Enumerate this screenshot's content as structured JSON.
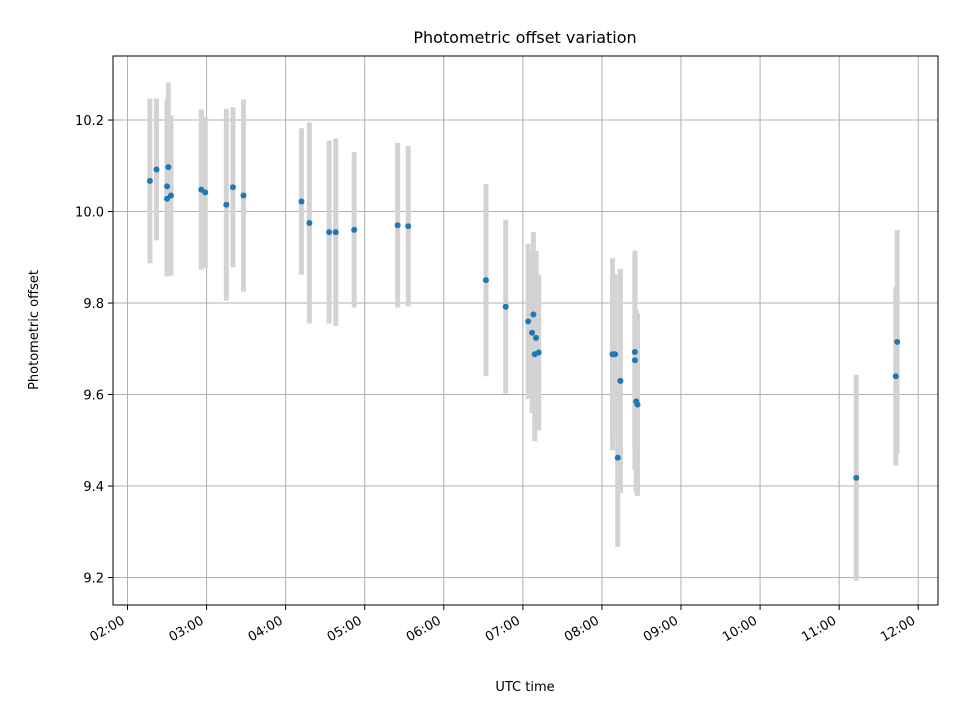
{
  "chart_data": {
    "type": "scatter",
    "title": "Photometric offset variation",
    "xlabel": "UTC time",
    "ylabel": "Photometric offset",
    "x_ticks": [
      "02:00",
      "03:00",
      "04:00",
      "05:00",
      "06:00",
      "07:00",
      "08:00",
      "09:00",
      "10:00",
      "11:00",
      "12:00"
    ],
    "y_ticks": [
      "9.2",
      "9.4",
      "9.6",
      "9.8",
      "10.0",
      "10.2"
    ],
    "xlim": [
      "01:49",
      "12:15"
    ],
    "ylim": [
      9.14,
      10.34
    ],
    "grid": true,
    "colors": {
      "point": "#1f77b4",
      "errorbar": "#d3d3d3",
      "grid": "#b0b0b0"
    },
    "points": [
      {
        "time": "02:17",
        "y": 10.067,
        "yerr": 0.18
      },
      {
        "time": "02:22",
        "y": 10.092,
        "yerr": 0.155
      },
      {
        "time": "02:30",
        "y": 10.055,
        "yerr": 0.19
      },
      {
        "time": "02:30",
        "y": 10.028,
        "yerr": 0.17
      },
      {
        "time": "02:31",
        "y": 10.097,
        "yerr": 0.185
      },
      {
        "time": "02:33",
        "y": 10.035,
        "yerr": 0.175
      },
      {
        "time": "02:56",
        "y": 10.048,
        "yerr": 0.175
      },
      {
        "time": "02:59",
        "y": 10.042,
        "yerr": 0.165
      },
      {
        "time": "03:15",
        "y": 10.015,
        "yerr": 0.21
      },
      {
        "time": "03:20",
        "y": 10.053,
        "yerr": 0.175
      },
      {
        "time": "03:28",
        "y": 10.035,
        "yerr": 0.21
      },
      {
        "time": "04:12",
        "y": 10.022,
        "yerr": 0.16
      },
      {
        "time": "04:18",
        "y": 9.975,
        "yerr": 0.22
      },
      {
        "time": "04:33",
        "y": 9.955,
        "yerr": 0.2
      },
      {
        "time": "04:38",
        "y": 9.955,
        "yerr": 0.205
      },
      {
        "time": "04:52",
        "y": 9.96,
        "yerr": 0.17
      },
      {
        "time": "05:25",
        "y": 9.97,
        "yerr": 0.18
      },
      {
        "time": "05:33",
        "y": 9.968,
        "yerr": 0.175
      },
      {
        "time": "06:32",
        "y": 9.85,
        "yerr": 0.21
      },
      {
        "time": "06:47",
        "y": 9.792,
        "yerr": 0.19
      },
      {
        "time": "07:04",
        "y": 9.76,
        "yerr": 0.17
      },
      {
        "time": "07:07",
        "y": 9.735,
        "yerr": 0.175
      },
      {
        "time": "07:08",
        "y": 9.775,
        "yerr": 0.18
      },
      {
        "time": "07:09",
        "y": 9.688,
        "yerr": 0.19
      },
      {
        "time": "07:10",
        "y": 9.724,
        "yerr": 0.19
      },
      {
        "time": "07:12",
        "y": 9.692,
        "yerr": 0.17
      },
      {
        "time": "08:08",
        "y": 9.688,
        "yerr": 0.21
      },
      {
        "time": "08:10",
        "y": 9.688,
        "yerr": 0.175
      },
      {
        "time": "08:12",
        "y": 9.462,
        "yerr": 0.195
      },
      {
        "time": "08:14",
        "y": 9.63,
        "yerr": 0.245
      },
      {
        "time": "08:25",
        "y": 9.675,
        "yerr": 0.24
      },
      {
        "time": "08:25",
        "y": 9.693,
        "yerr": 0.21
      },
      {
        "time": "08:26",
        "y": 9.585,
        "yerr": 0.2
      },
      {
        "time": "08:27",
        "y": 9.578,
        "yerr": 0.2
      },
      {
        "time": "11:13",
        "y": 9.418,
        "yerr": 0.225
      },
      {
        "time": "11:43",
        "y": 9.64,
        "yerr": 0.195
      },
      {
        "time": "11:44",
        "y": 9.715,
        "yerr": 0.245
      }
    ]
  }
}
